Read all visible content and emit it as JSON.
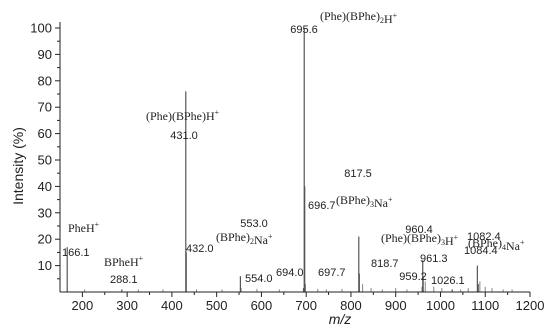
{
  "chart_data": {
    "type": "bar",
    "xlabel": "m/z",
    "ylabel": "Intensity (%)",
    "xlim": [
      150,
      1200
    ],
    "ylim": [
      0,
      100
    ],
    "xticks": [
      200,
      300,
      400,
      500,
      600,
      700,
      800,
      900,
      1000,
      1100,
      1200
    ],
    "yticks": [
      10,
      20,
      30,
      40,
      50,
      60,
      70,
      80,
      90,
      100
    ],
    "x_tick_labels": [
      "200",
      "300",
      "400",
      "500",
      "600",
      "700",
      "800",
      "900",
      "1000",
      "1100",
      "1200"
    ],
    "y_tick_labels": [
      "10",
      "20",
      "30",
      "40",
      "50",
      "60",
      "70",
      "80",
      "90",
      "100"
    ],
    "peaks": [
      {
        "x": 166.1,
        "y": 17,
        "label": "166.1"
      },
      {
        "x": 288.1,
        "y": 1,
        "label": "288.1"
      },
      {
        "x": 431.0,
        "y": 76,
        "label": "431.0"
      },
      {
        "x": 432.0,
        "y": 15,
        "label": "432.0"
      },
      {
        "x": 553.0,
        "y": 6,
        "label": "553.0"
      },
      {
        "x": 554.0,
        "y": 1.5,
        "label": "554.0"
      },
      {
        "x": 694.0,
        "y": 1.5,
        "label": "694.0"
      },
      {
        "x": 695.6,
        "y": 100,
        "label": "695.6"
      },
      {
        "x": 696.7,
        "y": 40,
        "label": "696.7"
      },
      {
        "x": 697.7,
        "y": 3,
        "label": "697.7"
      },
      {
        "x": 817.5,
        "y": 21,
        "label": "817.5"
      },
      {
        "x": 818.7,
        "y": 7,
        "label": "818.7"
      },
      {
        "x": 959.2,
        "y": 2,
        "label": "959.2"
      },
      {
        "x": 960.4,
        "y": 12,
        "label": "960.4"
      },
      {
        "x": 961.3,
        "y": 6,
        "label": "961.3"
      },
      {
        "x": 1026.1,
        "y": 1,
        "label": "1026.1"
      },
      {
        "x": 1082.4,
        "y": 10,
        "label": "1082.4"
      },
      {
        "x": 1084.4,
        "y": 3,
        "label": "1084.4"
      }
    ],
    "minor_peaks": [
      {
        "x": 205,
        "y": 1
      },
      {
        "x": 325,
        "y": 1
      },
      {
        "x": 380,
        "y": 1
      },
      {
        "x": 455,
        "y": 1
      },
      {
        "x": 512,
        "y": 1
      },
      {
        "x": 590,
        "y": 1.2
      },
      {
        "x": 640,
        "y": 1
      },
      {
        "x": 726,
        "y": 1.2
      },
      {
        "x": 745,
        "y": 1
      },
      {
        "x": 780,
        "y": 1.2
      },
      {
        "x": 826,
        "y": 3
      },
      {
        "x": 845,
        "y": 1.5
      },
      {
        "x": 870,
        "y": 1
      },
      {
        "x": 900,
        "y": 1.5
      },
      {
        "x": 925,
        "y": 1
      },
      {
        "x": 966,
        "y": 4
      },
      {
        "x": 985,
        "y": 2
      },
      {
        "x": 1003,
        "y": 1.5
      },
      {
        "x": 1045,
        "y": 1
      },
      {
        "x": 1062,
        "y": 1.5
      },
      {
        "x": 1088,
        "y": 4
      },
      {
        "x": 1100,
        "y": 2
      },
      {
        "x": 1115,
        "y": 1.5
      },
      {
        "x": 1140,
        "y": 1
      },
      {
        "x": 1160,
        "y": 1
      }
    ],
    "annotations": [
      {
        "base": "PheH",
        "sup": "+",
        "parts": [
          [
            "PheH",
            ""
          ],
          [
            "+",
            "sup"
          ]
        ]
      },
      {
        "base": "BPheH",
        "sup": "+",
        "parts": [
          [
            "BPheH",
            ""
          ],
          [
            "+",
            "sup"
          ]
        ]
      },
      {
        "base": "(Phe)(BPhe)H",
        "sup": "+",
        "parts": [
          [
            "(Phe)(BPhe)H",
            ""
          ],
          [
            "+",
            "sup"
          ]
        ]
      },
      {
        "base": "(BPhe)2Na",
        "sup": "+",
        "parts": [
          [
            "(BPhe)",
            ""
          ],
          [
            "2",
            "sub"
          ],
          [
            "Na",
            ""
          ],
          [
            "+",
            "sup"
          ]
        ]
      },
      {
        "base": "(Phe)(BPhe)2H",
        "sup": "+",
        "parts": [
          [
            "(Phe)(BPhe)",
            ""
          ],
          [
            "2",
            "sub"
          ],
          [
            "H",
            ""
          ],
          [
            "+",
            "sup"
          ]
        ]
      },
      {
        "base": "(BPhe)3Na",
        "sup": "+",
        "parts": [
          [
            "(BPhe)",
            ""
          ],
          [
            "3",
            "sub"
          ],
          [
            "Na",
            ""
          ],
          [
            "+",
            "sup"
          ]
        ]
      },
      {
        "base": "(Phe)(BPhe)3H",
        "sup": "+",
        "parts": [
          [
            "(Phe)(BPhe)",
            ""
          ],
          [
            "3",
            "sub"
          ],
          [
            "H",
            ""
          ],
          [
            "+",
            "sup"
          ]
        ]
      },
      {
        "base": "(BPhe)4Na",
        "sup": "+",
        "parts": [
          [
            "(BPhe)",
            ""
          ],
          [
            "4",
            "sub"
          ],
          [
            "Na",
            ""
          ],
          [
            "+",
            "sup"
          ]
        ]
      }
    ],
    "colors": {
      "axis": "#222222",
      "bars": "#555555",
      "text": "#222222"
    }
  }
}
